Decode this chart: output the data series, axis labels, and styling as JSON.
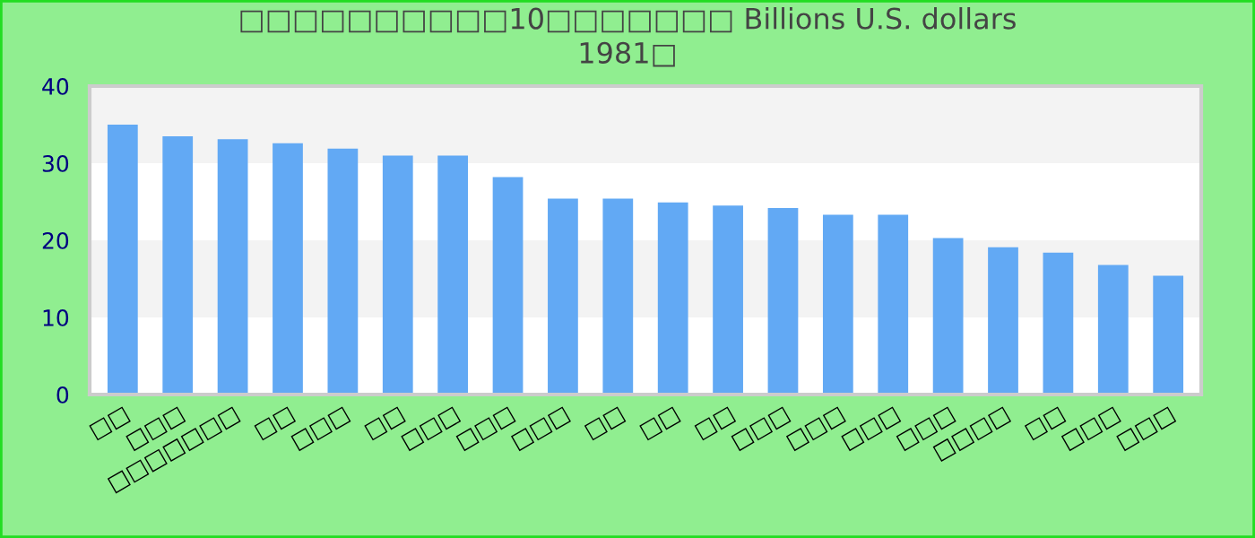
{
  "chart_data": {
    "type": "bar",
    "title": "□□□□□□□□□□10□□□□□□□ Billions U.S. dollars\n1981□",
    "categories": [
      "□□",
      "□□□",
      "□□□□□□□",
      "□□",
      "□□□",
      "□□",
      "□□□",
      "□□□",
      "□□□",
      "□□",
      "□□",
      "□□",
      "□□□",
      "□□□",
      "□□□",
      "□□□",
      "□□□□",
      "□□",
      "□□□",
      "□□□"
    ],
    "values": [
      35,
      33.5,
      33.1,
      32.6,
      31.9,
      31.0,
      31.0,
      28.2,
      25.4,
      25.4,
      24.9,
      24.5,
      24.2,
      23.3,
      23.3,
      20.3,
      19.1,
      18.4,
      16.8,
      15.4
    ],
    "color": "#62a9f4",
    "ylim": [
      0,
      40
    ],
    "yticks": [
      0,
      10,
      20,
      30,
      40
    ],
    "grid": false,
    "bands": [
      {
        "axis": "y",
        "from": 10,
        "to": 20,
        "color": "#f3f3f3"
      },
      {
        "axis": "y",
        "from": 30,
        "to": 40,
        "color": "#f3f3f3"
      }
    ]
  }
}
